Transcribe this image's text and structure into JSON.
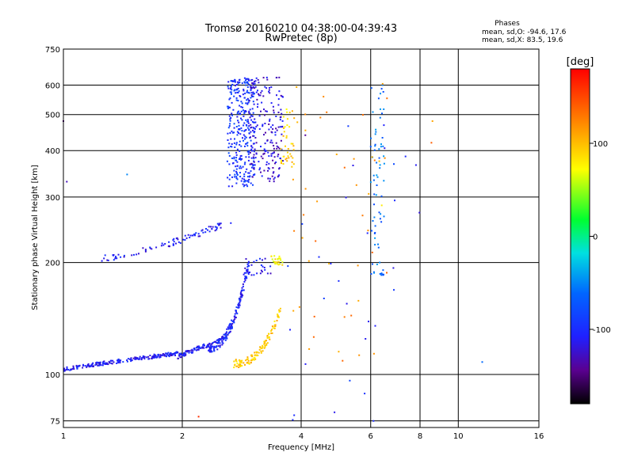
{
  "chart_data": {
    "type": "scatter",
    "title": "Tromsø 20160210 04:38:00-04:39:43",
    "subtitle": "RwPretec (8p)",
    "xlabel": "Frequency [MHz]",
    "ylabel": "Stationary phase Virtual Height [km]",
    "x_scale": "log",
    "y_scale": "log",
    "xlim": [
      1,
      16
    ],
    "ylim": [
      72,
      750
    ],
    "xticks": [
      1,
      2,
      4,
      6,
      8,
      10,
      16
    ],
    "yticks": [
      75,
      100,
      200,
      300,
      400,
      500,
      600,
      750
    ],
    "grid": true,
    "legend": {
      "title": "Phases",
      "line_o": "mean, sd,O: -94.6, 17.6",
      "line_x": "mean, sd,X:  83.5, 19.6"
    },
    "colorbar": {
      "label": "[deg]",
      "ticks": [
        100,
        0,
        -100
      ],
      "range": [
        -180,
        180
      ]
    },
    "point_groups": [
      {
        "kind": "trace",
        "f0": 1.0,
        "f1": 1.95,
        "h0": 103,
        "h1": 114,
        "shape": 0.9,
        "phase": -110,
        "jitter_h": 0.012,
        "n": 220
      },
      {
        "kind": "trace",
        "f0": 1.95,
        "f1": 2.3,
        "h0": 112,
        "h1": 120,
        "shape": 1.0,
        "phase": -108,
        "jitter_h": 0.015,
        "n": 60
      },
      {
        "kind": "trace",
        "f0": 2.3,
        "f1": 2.95,
        "h0": 118,
        "h1": 200,
        "shape": 2.5,
        "phase": -105,
        "jitter_h": 0.03,
        "n": 200
      },
      {
        "kind": "trace",
        "f0": 2.7,
        "f1": 3.55,
        "h0": 107,
        "h1": 150,
        "shape": 2.5,
        "phase": 95,
        "jitter_h": 0.025,
        "n": 120
      },
      {
        "kind": "trace",
        "f0": 1.25,
        "f1": 2.7,
        "h0": 205,
        "h1": 260,
        "shape": 1.4,
        "phase": -108,
        "jitter_h": 0.02,
        "n": 90
      },
      {
        "kind": "cloud",
        "f0": 2.6,
        "f1": 3.05,
        "h0": 320,
        "h1": 630,
        "phase": -95,
        "n": 320
      },
      {
        "kind": "cloud",
        "f0": 2.95,
        "f1": 3.6,
        "h0": 330,
        "h1": 630,
        "phase": -120,
        "n": 200
      },
      {
        "kind": "cloud",
        "f0": 3.55,
        "f1": 3.85,
        "h0": 360,
        "h1": 520,
        "phase": 90,
        "n": 40
      },
      {
        "kind": "cloud",
        "f0": 3.35,
        "f1": 3.6,
        "h0": 195,
        "h1": 210,
        "phase": 80,
        "n": 25
      },
      {
        "kind": "cloud",
        "f0": 2.85,
        "f1": 3.35,
        "h0": 185,
        "h1": 205,
        "phase": -110,
        "n": 30
      },
      {
        "kind": "cloud",
        "f0": 6.0,
        "f1": 6.5,
        "h0": 180,
        "h1": 640,
        "phase": -60,
        "n": 70
      },
      {
        "kind": "cloud",
        "f0": 3.8,
        "f1": 6.6,
        "h0": 100,
        "h1": 620,
        "phase": 120,
        "n": 45
      },
      {
        "kind": "cloud",
        "f0": 3.7,
        "f1": 8.8,
        "h0": 75,
        "h1": 520,
        "phase": -100,
        "n": 30
      }
    ],
    "extra_points": [
      [
        1.0,
        480,
        -150
      ],
      [
        1.02,
        330,
        -130
      ],
      [
        1.45,
        345,
        -50
      ],
      [
        8.6,
        480,
        110
      ],
      [
        8.55,
        420,
        140
      ],
      [
        11.5,
        108,
        -60
      ],
      [
        6.1,
        75,
        -100
      ],
      [
        2.2,
        77,
        160
      ],
      [
        6.4,
        285,
        80
      ],
      [
        4.1,
        440,
        -140
      ]
    ]
  }
}
